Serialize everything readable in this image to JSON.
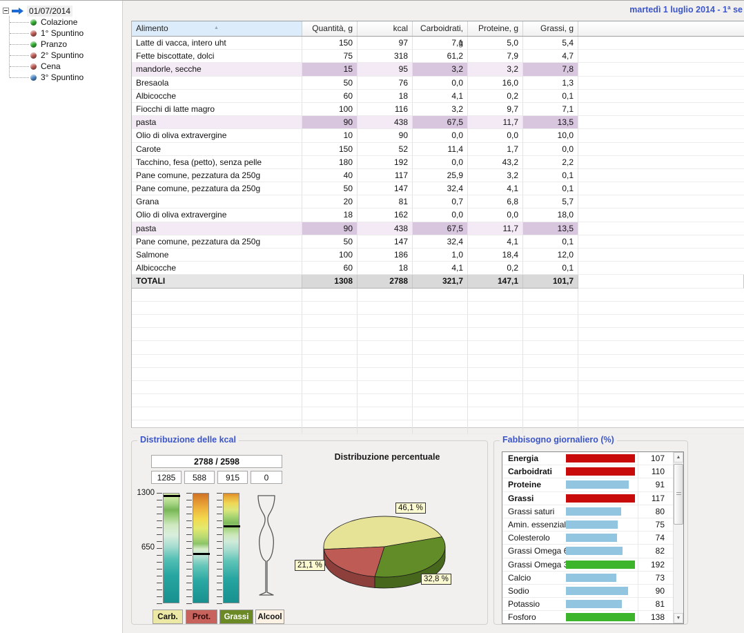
{
  "window": {
    "date_header": "martedì 1 luglio 2014 - 1ª se"
  },
  "tree": {
    "root_label": "01/07/2014",
    "items": [
      {
        "label": "Colazione",
        "dot_color": "#2fae2f"
      },
      {
        "label": "1° Spuntino",
        "dot_color": "#bf5a52"
      },
      {
        "label": "Pranzo",
        "dot_color": "#2fae2f"
      },
      {
        "label": "2° Spuntino",
        "dot_color": "#bf5a52"
      },
      {
        "label": "Cena",
        "dot_color": "#bf5a52"
      },
      {
        "label": "3° Spuntino",
        "dot_color": "#4a86c8"
      }
    ]
  },
  "table": {
    "columns": [
      "Alimento",
      "Quantità, g",
      "kcal",
      "Carboidrati, g",
      "Proteine, g",
      "Grassi, g"
    ],
    "sort_icon": "up-triangle-icon",
    "rows": [
      {
        "name": "Latte di vacca, intero uht",
        "qty": "150",
        "kcal": "97",
        "carbs": "7,1",
        "protein": "5,0",
        "fat": "5,4",
        "highlight": false
      },
      {
        "name": "Fette biscottate, dolci",
        "qty": "75",
        "kcal": "318",
        "carbs": "61,2",
        "protein": "7,9",
        "fat": "4,7",
        "highlight": false
      },
      {
        "name": "mandorle, secche",
        "qty": "15",
        "kcal": "95",
        "carbs": "3,2",
        "protein": "3,2",
        "fat": "7,8",
        "highlight": true
      },
      {
        "name": "Bresaola",
        "qty": "50",
        "kcal": "76",
        "carbs": "0,0",
        "protein": "16,0",
        "fat": "1,3",
        "highlight": false
      },
      {
        "name": "Albicocche",
        "qty": "60",
        "kcal": "18",
        "carbs": "4,1",
        "protein": "0,2",
        "fat": "0,1",
        "highlight": false
      },
      {
        "name": "Fiocchi di latte magro",
        "qty": "100",
        "kcal": "116",
        "carbs": "3,2",
        "protein": "9,7",
        "fat": "7,1",
        "highlight": false
      },
      {
        "name": "pasta",
        "qty": "90",
        "kcal": "438",
        "carbs": "67,5",
        "protein": "11,7",
        "fat": "13,5",
        "highlight": true
      },
      {
        "name": "Olio di oliva extravergine",
        "qty": "10",
        "kcal": "90",
        "carbs": "0,0",
        "protein": "0,0",
        "fat": "10,0",
        "highlight": false
      },
      {
        "name": "Carote",
        "qty": "150",
        "kcal": "52",
        "carbs": "11,4",
        "protein": "1,7",
        "fat": "0,0",
        "highlight": false
      },
      {
        "name": "Tacchino, fesa (petto), senza pelle",
        "qty": "180",
        "kcal": "192",
        "carbs": "0,0",
        "protein": "43,2",
        "fat": "2,2",
        "highlight": false
      },
      {
        "name": "Pane comune, pezzatura da 250g",
        "qty": "40",
        "kcal": "117",
        "carbs": "25,9",
        "protein": "3,2",
        "fat": "0,1",
        "highlight": false
      },
      {
        "name": "Pane comune, pezzatura da 250g",
        "qty": "50",
        "kcal": "147",
        "carbs": "32,4",
        "protein": "4,1",
        "fat": "0,1",
        "highlight": false
      },
      {
        "name": "Grana",
        "qty": "20",
        "kcal": "81",
        "carbs": "0,7",
        "protein": "6,8",
        "fat": "5,7",
        "highlight": false
      },
      {
        "name": "Olio di oliva extravergine",
        "qty": "18",
        "kcal": "162",
        "carbs": "0,0",
        "protein": "0,0",
        "fat": "18,0",
        "highlight": false
      },
      {
        "name": "pasta",
        "qty": "90",
        "kcal": "438",
        "carbs": "67,5",
        "protein": "11,7",
        "fat": "13,5",
        "highlight": true
      },
      {
        "name": "Pane comune, pezzatura da 250g",
        "qty": "50",
        "kcal": "147",
        "carbs": "32,4",
        "protein": "4,1",
        "fat": "0,1",
        "highlight": false
      },
      {
        "name": "Salmone",
        "qty": "100",
        "kcal": "186",
        "carbs": "1,0",
        "protein": "18,4",
        "fat": "12,0",
        "highlight": false
      },
      {
        "name": "Albicocche",
        "qty": "60",
        "kcal": "18",
        "carbs": "4,1",
        "protein": "0,2",
        "fat": "0,1",
        "highlight": false
      }
    ],
    "totals": {
      "name": "TOTALI",
      "qty": "1308",
      "kcal": "2788",
      "carbs": "321,7",
      "protein": "147,1",
      "fat": "101,7"
    }
  },
  "kcal_panel": {
    "title": "Distribuzione delle kcal",
    "total_display": "2788 / 2598",
    "value_boxes": [
      "1285",
      "588",
      "915",
      "0"
    ],
    "scale_top": "1300",
    "scale_mid": "650",
    "gauge_max": 1300,
    "gauge_values": [
      1285,
      588,
      915
    ],
    "legend": [
      {
        "label": "Carb.",
        "bg": "#ece9a6",
        "fg": "#111111"
      },
      {
        "label": "Prot.",
        "bg": "#c8625c",
        "fg": "#2d0606"
      },
      {
        "label": "Grassi",
        "bg": "#6b8a25",
        "fg": "#ffffff"
      },
      {
        "label": "Alcool",
        "bg": "#fbf2e4",
        "fg": "#111111"
      }
    ]
  },
  "pie_chart": {
    "title": "Distribuzione percentuale",
    "slices": [
      {
        "name": "Carboidrati",
        "pct": 46.1,
        "label": "46,1 %",
        "color": "#e7e396",
        "dark": "#b5b068"
      },
      {
        "name": "Proteine",
        "pct": 21.1,
        "label": "21,1 %",
        "color": "#bf5b55",
        "dark": "#8c3f3b"
      },
      {
        "name": "Grassi",
        "pct": 32.8,
        "label": "32,8 %",
        "color": "#628c28",
        "dark": "#47671c"
      }
    ]
  },
  "needs_panel": {
    "title": "Fabbisogno giornaliero (%)",
    "bar_colors": {
      "over_bad": "#c80a0a",
      "under": "#92c6e0",
      "over_good": "#3cb52c"
    },
    "items": [
      {
        "label": "Energia",
        "value": 107,
        "color": "#c80a0a",
        "bold": true
      },
      {
        "label": "Carboidrati",
        "value": 110,
        "color": "#c80a0a",
        "bold": true
      },
      {
        "label": "Proteine",
        "value": 91,
        "color": "#92c6e0",
        "bold": true
      },
      {
        "label": "Grassi",
        "value": 117,
        "color": "#c80a0a",
        "bold": true
      },
      {
        "label": "Grassi saturi",
        "value": 80,
        "color": "#92c6e0",
        "bold": false
      },
      {
        "label": "Amin. essenziali",
        "value": 75,
        "color": "#92c6e0",
        "bold": false
      },
      {
        "label": "Colesterolo",
        "value": 74,
        "color": "#92c6e0",
        "bold": false
      },
      {
        "label": "Grassi Omega 6",
        "value": 82,
        "color": "#92c6e0",
        "bold": false
      },
      {
        "label": "Grassi Omega 3",
        "value": 192,
        "color": "#3cb52c",
        "bold": false
      },
      {
        "label": "Calcio",
        "value": 73,
        "color": "#92c6e0",
        "bold": false
      },
      {
        "label": "Sodio",
        "value": 90,
        "color": "#92c6e0",
        "bold": false
      },
      {
        "label": "Potassio",
        "value": 81,
        "color": "#92c6e0",
        "bold": false
      },
      {
        "label": "Fosforo",
        "value": 138,
        "color": "#3cb52c",
        "bold": false
      }
    ]
  },
  "chart_data": [
    {
      "type": "pie",
      "title": "Distribuzione percentuale",
      "categories": [
        "Carboidrati",
        "Proteine",
        "Grassi"
      ],
      "values": [
        46.1,
        21.1,
        32.8
      ]
    },
    {
      "type": "bar",
      "title": "Fabbisogno giornaliero (%)",
      "categories": [
        "Energia",
        "Carboidrati",
        "Proteine",
        "Grassi",
        "Grassi saturi",
        "Amin. essenziali",
        "Colesterolo",
        "Grassi Omega 6",
        "Grassi Omega 3",
        "Calcio",
        "Sodio",
        "Potassio",
        "Fosforo"
      ],
      "values": [
        107,
        110,
        91,
        117,
        80,
        75,
        74,
        82,
        192,
        73,
        90,
        81,
        138
      ]
    }
  ]
}
